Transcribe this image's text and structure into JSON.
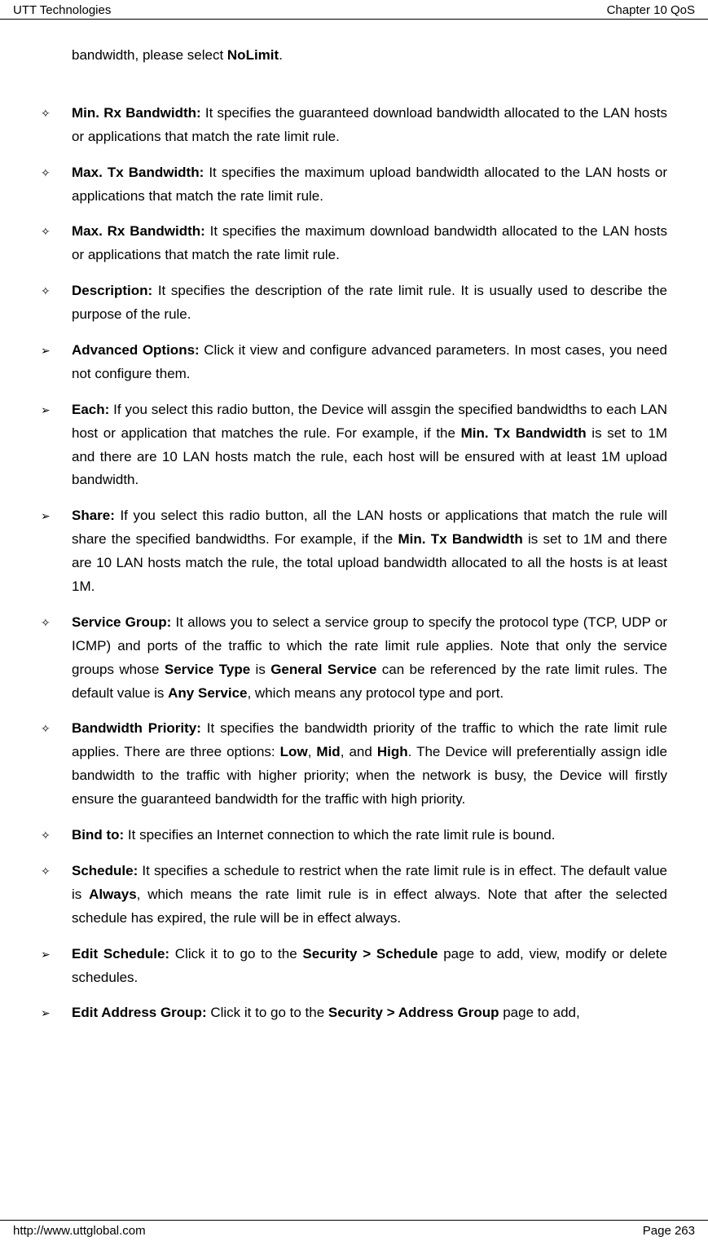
{
  "header": {
    "left": "UTT Technologies",
    "right": "Chapter 10 QoS"
  },
  "intro": {
    "pre": "bandwidth, please select ",
    "bold": "NoLimit",
    "post": "."
  },
  "items": [
    {
      "marker": "diamond",
      "title": "Min. Rx Bandwidth:",
      "text": " It specifies the guaranteed download bandwidth allocated to the LAN hosts or applications that match the rate limit rule."
    },
    {
      "marker": "diamond",
      "title": "Max. Tx Bandwidth:",
      "text": " It specifies the maximum upload bandwidth allocated to the LAN hosts or applications that match the rate limit rule."
    },
    {
      "marker": "diamond",
      "title": "Max. Rx Bandwidth:",
      "text": " It specifies the maximum download bandwidth allocated to the LAN hosts or applications that match the rate limit rule."
    },
    {
      "marker": "diamond",
      "title": "Description:",
      "text": " It specifies the description of the rate limit rule. It is usually used to describe the purpose of the rule."
    },
    {
      "marker": "arrow",
      "title": "Advanced Options:",
      "text": " Click it view and configure advanced parameters. In most cases, you need not configure them."
    },
    {
      "marker": "arrow",
      "title": "Each:",
      "richtext": [
        {
          "t": " If you select this radio button, the Device will assgin the specified bandwidths to each LAN host or application that matches the rule. For example, if the ",
          "b": false
        },
        {
          "t": "Min. Tx Bandwidth",
          "b": true
        },
        {
          "t": " is set to 1M and there are 10 LAN hosts match the rule, each host will be ensured with at least 1M upload bandwidth.",
          "b": false
        }
      ]
    },
    {
      "marker": "arrow",
      "title": "Share:",
      "richtext": [
        {
          "t": " If you select this radio button, all the LAN hosts or applications that match the rule will share the specified bandwidths. For example, if the ",
          "b": false
        },
        {
          "t": "Min. Tx Bandwidth",
          "b": true
        },
        {
          "t": " is set to 1M and there are 10 LAN hosts match the rule, the total upload bandwidth allocated to all the hosts is at least 1M.",
          "b": false
        }
      ]
    },
    {
      "marker": "diamond",
      "title": "Service Group:",
      "richtext": [
        {
          "t": " It allows you to select a service group to specify the protocol type (TCP, UDP or ICMP) and ports of the traffic to which the rate limit rule applies. Note that only the service groups whose ",
          "b": false
        },
        {
          "t": "Service Type",
          "b": true
        },
        {
          "t": " is ",
          "b": false
        },
        {
          "t": "General Service",
          "b": true
        },
        {
          "t": " can be referenced by the rate limit rules. The default value is ",
          "b": false
        },
        {
          "t": "Any Service",
          "b": true
        },
        {
          "t": ", which means any protocol type and port.",
          "b": false
        }
      ]
    },
    {
      "marker": "diamond",
      "title": "Bandwidth Priority:",
      "richtext": [
        {
          "t": " It specifies the bandwidth priority of the traffic to which the rate limit rule applies. There are three options: ",
          "b": false
        },
        {
          "t": "Low",
          "b": true
        },
        {
          "t": ", ",
          "b": false
        },
        {
          "t": "Mid",
          "b": true
        },
        {
          "t": ", and ",
          "b": false
        },
        {
          "t": "High",
          "b": true
        },
        {
          "t": ". The Device will preferentially assign idle bandwidth to the traffic with higher priority; when the network is busy, the Device will firstly ensure the guaranteed bandwidth for the traffic with high priority.",
          "b": false
        }
      ]
    },
    {
      "marker": "diamond",
      "title": "Bind to:",
      "text": " It specifies an Internet connection to which the rate limit rule is bound."
    },
    {
      "marker": "diamond",
      "title": "Schedule:",
      "richtext": [
        {
          "t": " It specifies a schedule to restrict when the rate limit rule is in effect. The default value is ",
          "b": false
        },
        {
          "t": "Always",
          "b": true
        },
        {
          "t": ", which means the rate limit rule is in effect always. Note that after the selected schedule has expired, the rule will be in effect always.",
          "b": false
        }
      ]
    },
    {
      "marker": "arrow",
      "title": "Edit Schedule:",
      "richtext": [
        {
          "t": " Click it to go to the ",
          "b": false
        },
        {
          "t": "Security > Schedule",
          "b": true
        },
        {
          "t": " page to add, view, modify or delete schedules.",
          "b": false
        }
      ]
    },
    {
      "marker": "arrow",
      "title": "Edit Address Group:",
      "richtext": [
        {
          "t": " Click it to go to the ",
          "b": false
        },
        {
          "t": "Security > Address Group",
          "b": true
        },
        {
          "t": " page to add,",
          "b": false
        }
      ]
    }
  ],
  "markers": {
    "diamond": "✧",
    "arrow": "➢"
  },
  "footer": {
    "left": "http://www.uttglobal.com",
    "right": "Page 263"
  }
}
